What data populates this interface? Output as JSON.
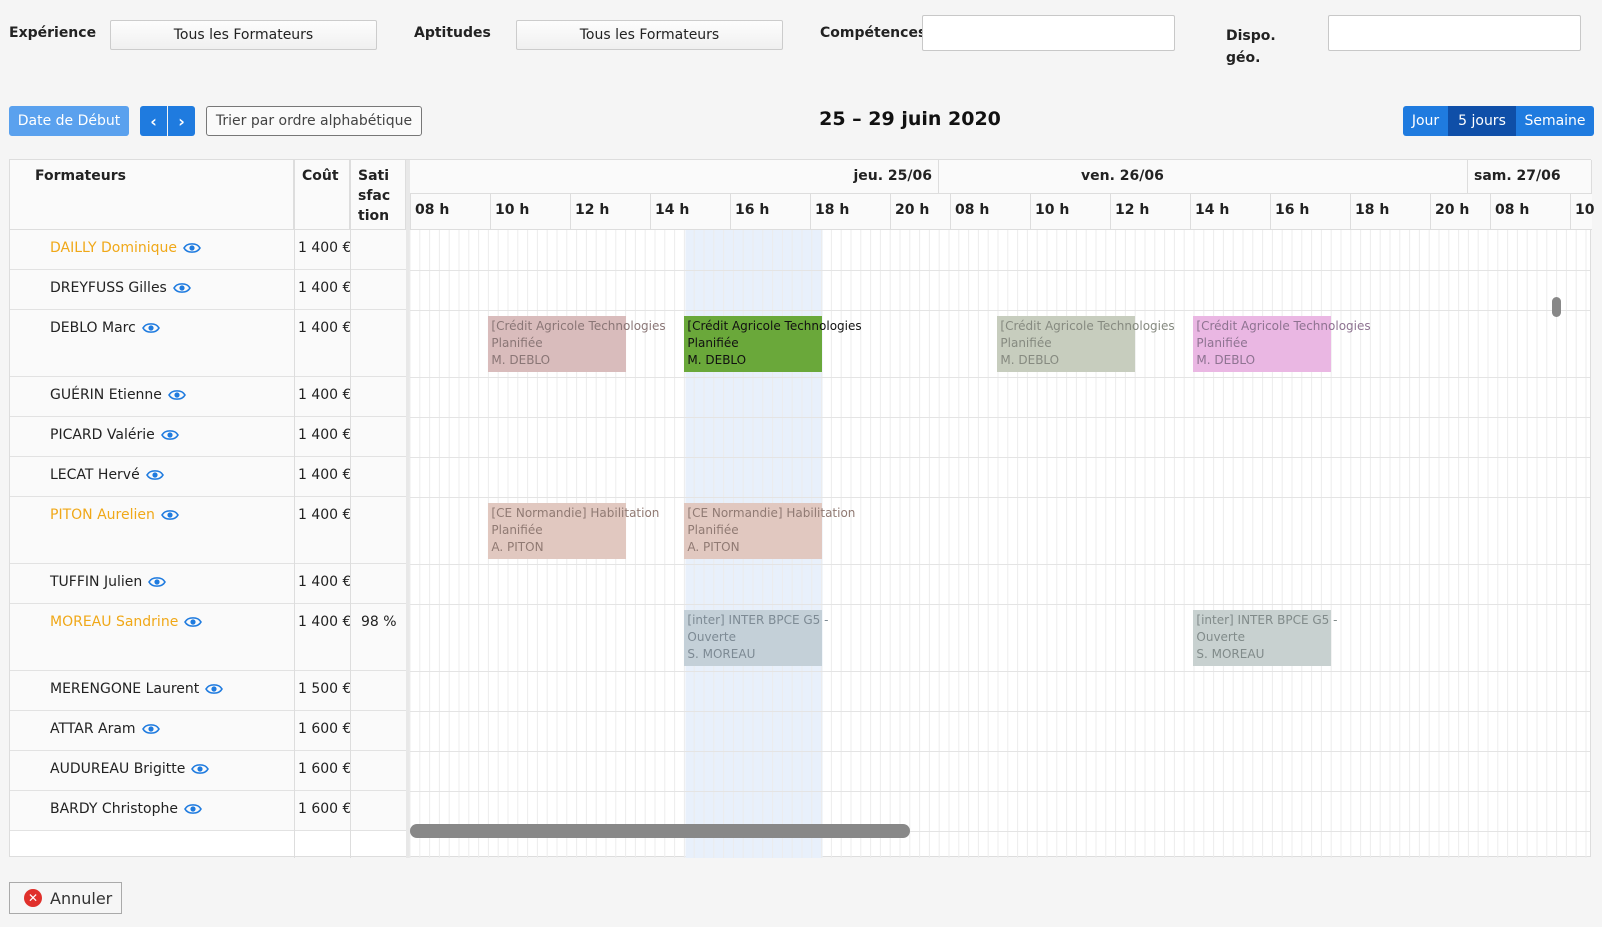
{
  "filters": {
    "experience_label": "Expérience",
    "experience_value": "Tous les Formateurs",
    "aptitudes_label": "Aptitudes",
    "aptitudes_value": "Tous les Formateurs",
    "competences_label": "Compétences",
    "competences_value": "",
    "dispo_label_line1": "Dispo.",
    "dispo_label_line2": "géo.",
    "dispo_value": ""
  },
  "toolbar": {
    "start_date_label": "Date de Début",
    "prev_icon": "chevron-left-icon",
    "next_icon": "chevron-right-icon",
    "prev_glyph": "‹",
    "next_glyph": "›",
    "sort_label": "Trier par ordre alphabétique",
    "date_range": "25 – 29 juin 2020",
    "views": [
      "Jour",
      "5 jours",
      "Semaine"
    ],
    "active_view": "5 jours"
  },
  "table": {
    "headers": {
      "trainers": "Formateurs",
      "cost": "Coût",
      "satisfaction_line1": "Sati",
      "satisfaction_line2": "sfac",
      "satisfaction_line3": "tion"
    },
    "days": [
      "jeu. 25/06",
      "ven. 26/06",
      "sam. 27/06"
    ],
    "hours": [
      "08 h",
      "10 h",
      "12 h",
      "14 h",
      "16 h",
      "18 h",
      "20 h",
      "08 h",
      "10 h",
      "12 h",
      "14 h",
      "16 h",
      "18 h",
      "20 h",
      "08 h",
      "10"
    ],
    "rows": [
      {
        "name": "DAILLY Dominique",
        "cost": "1 400 €",
        "satisfaction": "",
        "highlight": true
      },
      {
        "name": "DREYFUSS Gilles",
        "cost": "1 400 €",
        "satisfaction": "",
        "highlight": false
      },
      {
        "name": "DEBLO Marc",
        "cost": "1 400 €",
        "satisfaction": "",
        "highlight": false
      },
      {
        "name": "GUÉRIN Etienne",
        "cost": "1 400 €",
        "satisfaction": "",
        "highlight": false
      },
      {
        "name": "PICARD Valérie",
        "cost": "1 400 €",
        "satisfaction": "",
        "highlight": false
      },
      {
        "name": "LECAT Hervé",
        "cost": "1 400 €",
        "satisfaction": "",
        "highlight": false
      },
      {
        "name": "PITON Aurelien",
        "cost": "1 400 €",
        "satisfaction": "",
        "highlight": true
      },
      {
        "name": "TUFFIN Julien",
        "cost": "1 400 €",
        "satisfaction": "",
        "highlight": false
      },
      {
        "name": "MOREAU Sandrine",
        "cost": "1 400 €",
        "satisfaction": "98 %",
        "highlight": true
      },
      {
        "name": "MERENGONE Laurent",
        "cost": "1 500 €",
        "satisfaction": "",
        "highlight": false
      },
      {
        "name": "ATTAR Aram",
        "cost": "1 600 €",
        "satisfaction": "",
        "highlight": false
      },
      {
        "name": "AUDUREAU Brigitte",
        "cost": "1 600 €",
        "satisfaction": "",
        "highlight": false
      },
      {
        "name": "BARDY Christophe",
        "cost": "1 600 €",
        "satisfaction": "",
        "highlight": false
      }
    ]
  },
  "events": [
    {
      "row": 2,
      "day": 0,
      "start_hour": 9,
      "end_hour": 12.5,
      "title": "[Crédit Agricole Technologies",
      "status": "Planifiée",
      "trainer": "M. DEBLO",
      "bg": "#d9bcbc",
      "fg": "#8a7676"
    },
    {
      "row": 2,
      "day": 0,
      "start_hour": 14,
      "end_hour": 17.5,
      "title": "[Crédit Agricole Technologies",
      "status": "Planifiée",
      "trainer": "M. DEBLO",
      "bg": "#6aa83a",
      "fg": "#111111"
    },
    {
      "row": 2,
      "day": 1,
      "start_hour": 9,
      "end_hour": 12.5,
      "title": "[Crédit Agricole Technologies",
      "status": "Planifiée",
      "trainer": "M. DEBLO",
      "bg": "#c7cdbe",
      "fg": "#868a80"
    },
    {
      "row": 2,
      "day": 1,
      "start_hour": 14,
      "end_hour": 17.5,
      "title": "[Crédit Agricole Technologies",
      "status": "Planifiée",
      "trainer": "M. DEBLO",
      "bg": "#eab7e3",
      "fg": "#8e7391"
    },
    {
      "row": 6,
      "day": 0,
      "start_hour": 9,
      "end_hour": 12.5,
      "title": "[CE Normandie] Habilitation",
      "status": "Planifiée",
      "trainer": "A. PITON",
      "bg": "#e1c8c0",
      "fg": "#907a73"
    },
    {
      "row": 6,
      "day": 0,
      "start_hour": 14,
      "end_hour": 17.5,
      "title": "[CE Normandie] Habilitation",
      "status": "Planifiée",
      "trainer": "A. PITON",
      "bg": "#e1c8c0",
      "fg": "#907a73"
    },
    {
      "row": 8,
      "day": 0,
      "start_hour": 14,
      "end_hour": 17.5,
      "title": "[inter] INTER BPCE G5 - ",
      "status": "Ouverte",
      "trainer": "S. MOREAU",
      "bg": "#c4d0d8",
      "fg": "#7d8a94"
    },
    {
      "row": 8,
      "day": 1,
      "start_hour": 14,
      "end_hour": 17.5,
      "title": "[inter] INTER BPCE G5 - ",
      "status": "Ouverte",
      "trainer": "S. MOREAU",
      "bg": "#c8d1d0",
      "fg": "#818b8a"
    }
  ],
  "footer": {
    "cancel_label": "Annuler",
    "cancel_icon": "close-circle-icon"
  }
}
